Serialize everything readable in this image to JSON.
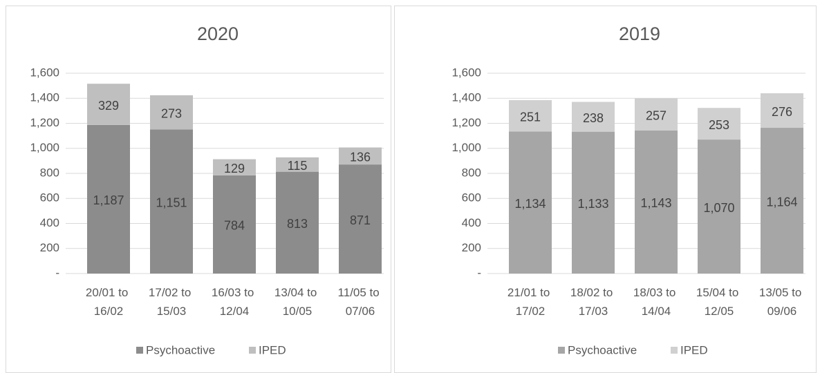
{
  "chart_data": [
    {
      "type": "bar",
      "stacked": true,
      "title": "2020",
      "categories": [
        "20/01 to 16/02",
        "17/02 to 15/03",
        "16/03 to 12/04",
        "13/04 to 10/05",
        "11/05 to 07/06"
      ],
      "series": [
        {
          "name": "Psychoactive",
          "color": "#8c8c8c",
          "values": [
            1187,
            1151,
            784,
            813,
            871
          ],
          "value_labels": [
            "1,187",
            "1,151",
            "784",
            "813",
            "871"
          ]
        },
        {
          "name": "IPED",
          "color": "#bfbfbf",
          "values": [
            329,
            273,
            129,
            115,
            136
          ],
          "value_labels": [
            "329",
            "273",
            "129",
            "115",
            "136"
          ]
        }
      ],
      "ylim": [
        0,
        1600
      ],
      "yticks": [
        {
          "value": 0,
          "label": "-"
        },
        200,
        400,
        600,
        800,
        {
          "value": 1000,
          "label": "1,000"
        },
        {
          "value": 1200,
          "label": "1,200"
        },
        {
          "value": 1400,
          "label": "1,400"
        },
        {
          "value": 1600,
          "label": "1,600"
        }
      ],
      "grid": true,
      "legend": "bottom"
    },
    {
      "type": "bar",
      "stacked": true,
      "title": "2019",
      "categories": [
        "21/01 to 17/02",
        "18/02 to 17/03",
        "18/03 to 14/04",
        "15/04 to 12/05",
        "13/05 to 09/06"
      ],
      "series": [
        {
          "name": "Psychoactive",
          "color": "#a6a6a6",
          "values": [
            1134,
            1133,
            1143,
            1070,
            1164
          ],
          "value_labels": [
            "1,134",
            "1,133",
            "1,143",
            "1,070",
            "1,164"
          ]
        },
        {
          "name": "IPED",
          "color": "#d0d0d0",
          "values": [
            251,
            238,
            257,
            253,
            276
          ],
          "value_labels": [
            "251",
            "238",
            "257",
            "253",
            "276"
          ]
        }
      ],
      "ylim": [
        0,
        1600
      ],
      "yticks": [
        {
          "value": 0,
          "label": "-"
        },
        200,
        400,
        600,
        800,
        {
          "value": 1000,
          "label": "1,000"
        },
        {
          "value": 1200,
          "label": "1,200"
        },
        {
          "value": 1400,
          "label": "1,400"
        },
        {
          "value": 1600,
          "label": "1,600"
        }
      ],
      "grid": true,
      "legend": "bottom"
    }
  ]
}
